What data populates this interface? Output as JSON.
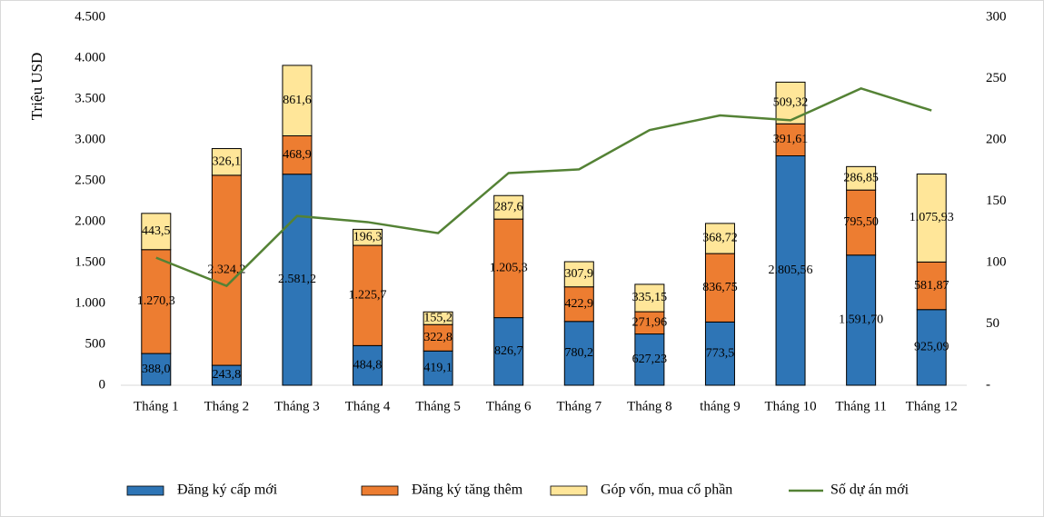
{
  "chart_data": {
    "type": "bar",
    "stacked": true,
    "ylabel": "Triệu USD",
    "categories": [
      "Tháng 1",
      "Tháng 2",
      "Tháng 3",
      "Tháng 4",
      "Tháng 5",
      "Tháng 6",
      "Tháng 7",
      "Tháng 8",
      "tháng 9",
      "Tháng 10",
      "Tháng 11",
      "Tháng 12"
    ],
    "series": [
      {
        "name": "Đăng ký cấp mới",
        "color": "#2e75b6",
        "values": [
          388.0,
          243.8,
          2581.2,
          484.8,
          419.1,
          826.7,
          780.2,
          627.23,
          773.5,
          2805.56,
          1591.7,
          925.09
        ],
        "value_labels": [
          "388,0",
          "243,8",
          "2.581,2",
          "484,8",
          "419,1",
          "826,7",
          "780,2",
          "627,23",
          "773,5",
          "2.805,56",
          "1.591,70",
          "925,09"
        ]
      },
      {
        "name": "Đăng ký tăng thêm",
        "color": "#ed7d31",
        "values": [
          1270.3,
          2324.2,
          468.9,
          1225.7,
          322.8,
          1205.3,
          422.9,
          271.96,
          836.75,
          391.61,
          795.5,
          581.87
        ],
        "value_labels": [
          "1.270,3",
          "2.324,2",
          "468,9",
          "1.225,7",
          "322,8",
          "1.205,3",
          "422,9",
          "271,96",
          "836,75",
          "391,61",
          "795,50",
          "581,87"
        ]
      },
      {
        "name": "Góp vốn, mua cổ phần",
        "color": "#ffe699",
        "values": [
          443.5,
          326.1,
          861.6,
          196.3,
          155.2,
          287.6,
          307.9,
          335.15,
          368.72,
          509.32,
          286.85,
          1075.93
        ],
        "value_labels": [
          "443,5",
          "326,1",
          "861,6",
          "196,3",
          "155,2",
          "287,6",
          "307,9",
          "335,15",
          "368,72",
          "509,32",
          "286,85",
          "1.075,93"
        ]
      },
      {
        "name": "Số dự án mới",
        "color": "#548235",
        "type": "line",
        "axis": "y2",
        "values": [
          104,
          81,
          138,
          133,
          124,
          173,
          176,
          208,
          220,
          216,
          242,
          224
        ]
      }
    ],
    "ylim": [
      0,
      4500
    ],
    "yticks": [
      0,
      500,
      {
        "value": 1000,
        "label": "1.000"
      },
      {
        "value": 1500,
        "label": "1.500"
      },
      {
        "value": 2000,
        "label": "2.000"
      },
      {
        "value": 2500,
        "label": "2.500"
      },
      {
        "value": 3000,
        "label": "3.000"
      },
      {
        "value": 3500,
        "label": "3.500"
      },
      {
        "value": 4000,
        "label": "4.000"
      },
      {
        "value": 4500,
        "label": "4.500"
      }
    ],
    "y2lim": [
      0,
      300
    ],
    "y2ticks": [
      {
        "value": 0,
        "label": "-"
      },
      50,
      100,
      150,
      200,
      250,
      300
    ],
    "legend": "bottom"
  }
}
